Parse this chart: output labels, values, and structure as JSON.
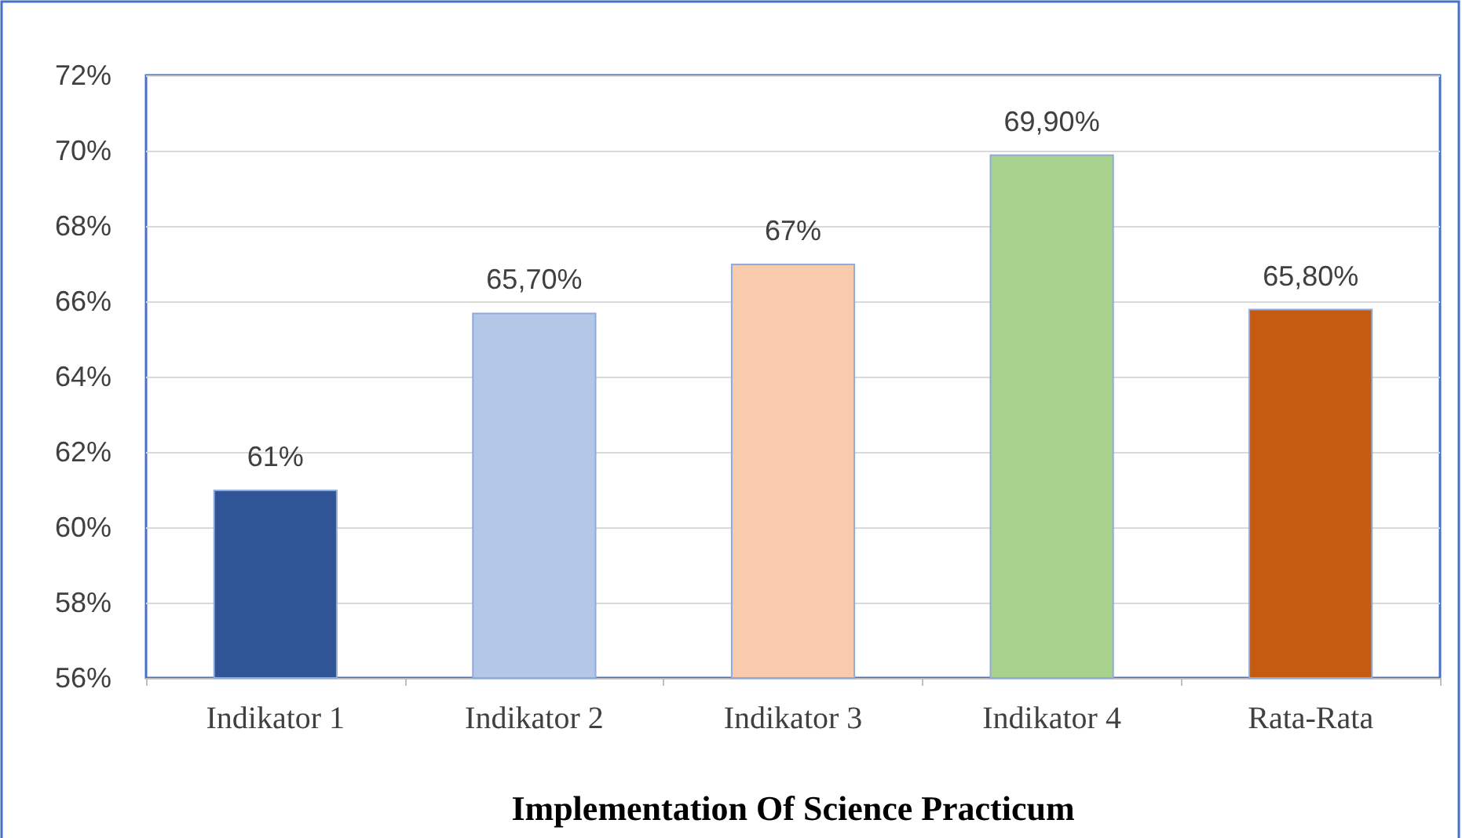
{
  "chart_data": {
    "type": "bar",
    "xlabel": "Implementation Of Science Practicum",
    "categories": [
      "Indikator 1",
      "Indikator 2",
      "Indikator 3",
      "Indikator 4",
      "Rata-Rata"
    ],
    "values": [
      61,
      65.7,
      67,
      69.9,
      65.8
    ],
    "colors": [
      "#2f5597",
      "#b4c7e7",
      "#f8cbad",
      "#a9d18e",
      "#c55a11"
    ],
    "value_labels": [
      "61%",
      "65,70%",
      "67%",
      "69,90%",
      "65,80%"
    ],
    "ylim": [
      56,
      72
    ],
    "yticks": [
      {
        "value": 56,
        "label": "56%"
      },
      {
        "value": 58,
        "label": "58%"
      },
      {
        "value": 60,
        "label": "60%"
      },
      {
        "value": 62,
        "label": "62%"
      },
      {
        "value": 64,
        "label": "64%"
      },
      {
        "value": 66,
        "label": "66%"
      },
      {
        "value": 68,
        "label": "68%"
      },
      {
        "value": 70,
        "label": "70%"
      },
      {
        "value": 72,
        "label": "72%"
      }
    ],
    "grid": "y"
  }
}
